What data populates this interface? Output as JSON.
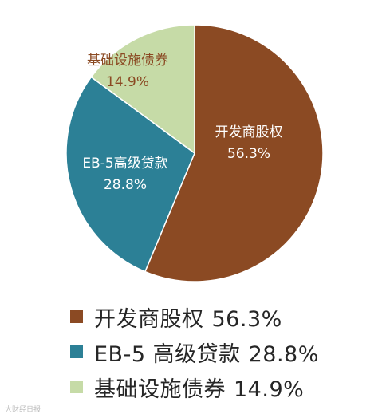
{
  "chart_data": {
    "type": "pie",
    "slices": [
      {
        "label": "开发商股权",
        "legend_label": "开发商股权",
        "value": 56.3,
        "value_label": "56.3%",
        "color": "#8B4A23",
        "label_color": "#ffffff"
      },
      {
        "label": "EB-5高级贷款",
        "legend_label": "EB-5 高级贷款",
        "value": 28.8,
        "value_label": "28.8%",
        "color": "#2C8096",
        "label_color": "#ffffff"
      },
      {
        "label": "基础设施债券",
        "legend_label": "基础设施债券",
        "value": 14.9,
        "value_label": "14.9%",
        "color": "#C6DBA7",
        "label_color": "#8B4A23"
      }
    ],
    "start_angle_deg": 0,
    "direction": "clockwise",
    "legend_position": "bottom"
  },
  "watermark": {
    "text": "大财经日报"
  }
}
